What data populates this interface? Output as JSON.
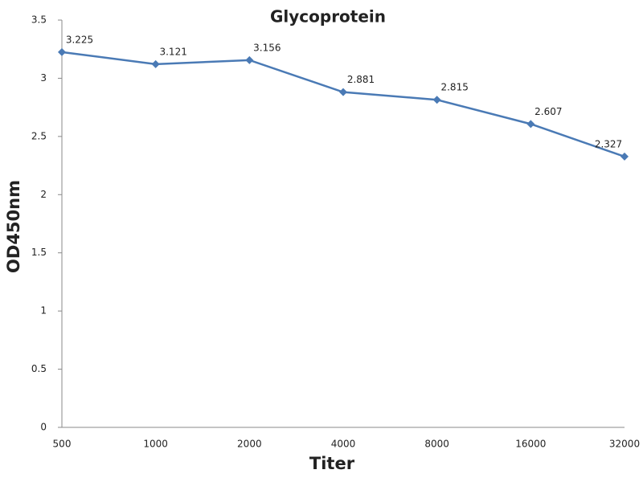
{
  "chart_data": {
    "type": "line",
    "title": "Glycoprotein",
    "x_label": "Titer",
    "y_label": "OD450nm",
    "categories": [
      "500",
      "1000",
      "2000",
      "4000",
      "8000",
      "16000",
      "32000"
    ],
    "series": [
      {
        "name": "Glycoprotein",
        "color": "#4a7ab5",
        "values": [
          3.225,
          3.121,
          3.156,
          2.881,
          2.815,
          2.607,
          2.327
        ]
      }
    ],
    "ylim": [
      0,
      3.5
    ],
    "yticks": [
      0,
      0.5,
      1,
      1.5,
      2,
      2.5,
      3,
      3.5
    ],
    "grid": false
  }
}
